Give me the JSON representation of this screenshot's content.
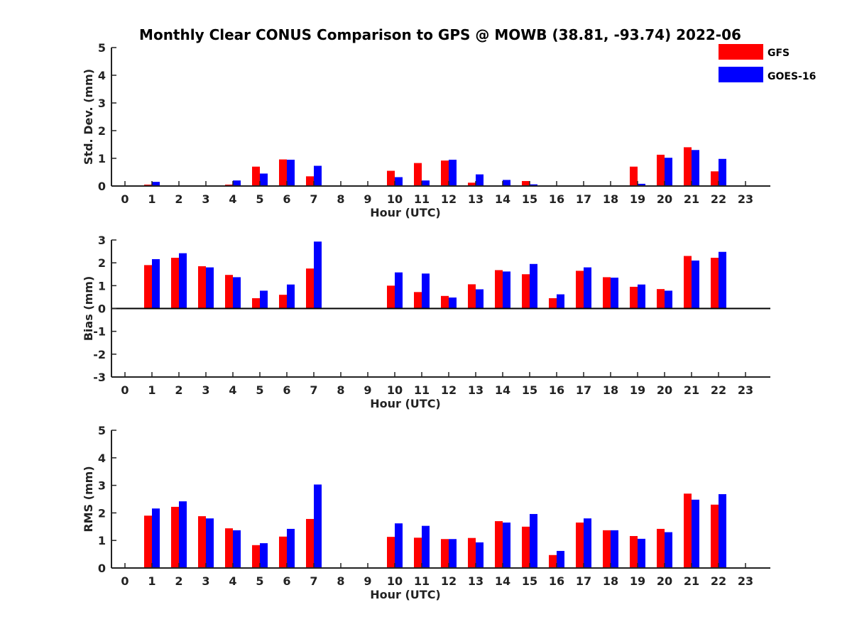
{
  "title": "Monthly Clear CONUS Comparison to GPS @ MOWB (38.81, -93.74) 2022-06",
  "legend": {
    "placement": "top-right",
    "entries": [
      {
        "label": "GFS",
        "color": "#ff0000"
      },
      {
        "label": "GOES-16",
        "color": "#0000ff"
      }
    ]
  },
  "chart_data": [
    {
      "type": "bar",
      "xlabel": "Hour (UTC)",
      "ylabel": "Std. Dev. (mm)",
      "ylim": [
        0,
        5
      ],
      "yticks": [
        0,
        1,
        2,
        3,
        4,
        5
      ],
      "categories": [
        0,
        1,
        2,
        3,
        4,
        5,
        6,
        7,
        8,
        9,
        10,
        11,
        12,
        13,
        14,
        15,
        16,
        17,
        18,
        19,
        20,
        21,
        22,
        23
      ],
      "series": [
        {
          "name": "GFS",
          "color": "#ff0000",
          "values": [
            null,
            0.05,
            null,
            null,
            0.05,
            0.7,
            0.96,
            0.35,
            null,
            null,
            0.55,
            0.83,
            0.92,
            0.12,
            null,
            0.18,
            null,
            null,
            null,
            0.7,
            1.13,
            1.4,
            0.53,
            null
          ]
        },
        {
          "name": "GOES-16",
          "color": "#0000ff",
          "values": [
            null,
            0.15,
            null,
            null,
            0.2,
            0.45,
            0.95,
            0.73,
            null,
            null,
            0.32,
            0.2,
            0.95,
            0.42,
            0.22,
            0.06,
            null,
            null,
            null,
            0.08,
            1.02,
            1.3,
            0.98,
            null
          ]
        }
      ]
    },
    {
      "type": "bar",
      "xlabel": "Hour (UTC)",
      "ylabel": "Bias (mm)",
      "ylim": [
        -3,
        3
      ],
      "yticks": [
        -3,
        -2,
        -1,
        0,
        1,
        2,
        3
      ],
      "categories": [
        0,
        1,
        2,
        3,
        4,
        5,
        6,
        7,
        8,
        9,
        10,
        11,
        12,
        13,
        14,
        15,
        16,
        17,
        18,
        19,
        20,
        21,
        22,
        23
      ],
      "series": [
        {
          "name": "GFS",
          "color": "#ff0000",
          "values": [
            null,
            1.9,
            2.22,
            1.85,
            1.47,
            0.45,
            0.6,
            1.75,
            null,
            null,
            1.0,
            0.72,
            0.55,
            1.06,
            1.68,
            1.5,
            0.45,
            1.65,
            1.37,
            0.95,
            0.85,
            2.3,
            2.22,
            null
          ]
        },
        {
          "name": "GOES-16",
          "color": "#0000ff",
          "values": [
            null,
            2.16,
            2.42,
            1.8,
            1.37,
            0.78,
            1.05,
            2.93,
            null,
            null,
            1.58,
            1.53,
            0.48,
            0.84,
            1.62,
            1.95,
            0.62,
            1.8,
            1.35,
            1.05,
            0.78,
            2.1,
            2.48,
            null
          ]
        }
      ]
    },
    {
      "type": "bar",
      "xlabel": "Hour (UTC)",
      "ylabel": "RMS (mm)",
      "ylim": [
        0,
        5
      ],
      "yticks": [
        0,
        1,
        2,
        3,
        4,
        5
      ],
      "categories": [
        0,
        1,
        2,
        3,
        4,
        5,
        6,
        7,
        8,
        9,
        10,
        11,
        12,
        13,
        14,
        15,
        16,
        17,
        18,
        19,
        20,
        21,
        22,
        23
      ],
      "series": [
        {
          "name": "GFS",
          "color": "#ff0000",
          "values": [
            null,
            1.9,
            2.22,
            1.88,
            1.44,
            0.83,
            1.14,
            1.78,
            null,
            null,
            1.13,
            1.1,
            1.05,
            1.09,
            1.7,
            1.5,
            0.47,
            1.65,
            1.37,
            1.16,
            1.42,
            2.7,
            2.3,
            null
          ]
        },
        {
          "name": "GOES-16",
          "color": "#0000ff",
          "values": [
            null,
            2.16,
            2.42,
            1.8,
            1.37,
            0.9,
            1.42,
            3.03,
            null,
            null,
            1.62,
            1.53,
            1.05,
            0.93,
            1.65,
            1.96,
            0.62,
            1.8,
            1.37,
            1.06,
            1.3,
            2.48,
            2.68,
            null
          ]
        }
      ]
    }
  ]
}
